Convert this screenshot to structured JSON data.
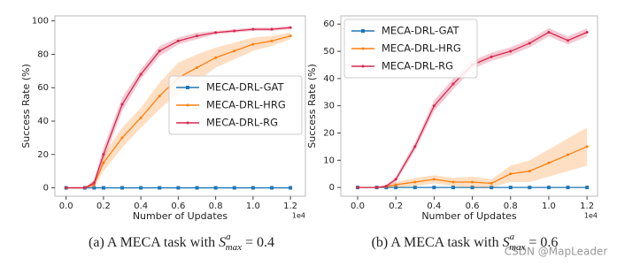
{
  "chart_data": [
    {
      "type": "line",
      "y_label": "Success Rate (%)",
      "x_label": "Number of Updates",
      "x_offset_label": "1e4",
      "x": [
        0,
        0.1,
        0.15,
        0.2,
        0.3,
        0.4,
        0.5,
        0.6,
        0.7,
        0.8,
        0.9,
        1.0,
        1.1,
        1.2
      ],
      "xlim": [
        -0.06,
        1.28
      ],
      "ylim": [
        -5,
        103
      ],
      "xticks": [
        {
          "value": 0,
          "label": "0.0"
        },
        {
          "value": 0.2,
          "label": "0.2"
        },
        {
          "value": 0.4,
          "label": "0.4"
        },
        {
          "value": 0.6,
          "label": "0.6"
        },
        {
          "value": 0.8,
          "label": "0.8"
        },
        {
          "value": 1.0,
          "label": "1.0"
        },
        {
          "value": 1.2,
          "label": "1.2"
        }
      ],
      "yticks": [
        0,
        20,
        40,
        60,
        80,
        100
      ],
      "legend": "lower right",
      "series": [
        {
          "name": "MECA-DRL-GAT",
          "color": "#1f77b4",
          "marker": "square",
          "values": [
            0,
            0,
            0,
            0,
            0,
            0,
            0,
            0,
            0,
            0,
            0,
            0,
            0,
            0
          ]
        },
        {
          "name": "MECA-DRL-HRG",
          "color": "#ff7f0e",
          "marker": "dot",
          "values": [
            0,
            0,
            2,
            15,
            30,
            42,
            55,
            66,
            72,
            78,
            82,
            86,
            88,
            91
          ],
          "lower": [
            0,
            0,
            0,
            10,
            24,
            36,
            47,
            57,
            64,
            72,
            77,
            82,
            85,
            89
          ],
          "upper": [
            0,
            0,
            4,
            20,
            36,
            48,
            63,
            75,
            80,
            84,
            87,
            90,
            91,
            93
          ]
        },
        {
          "name": "MECA-DRL-RG",
          "color": "#d62750",
          "marker": "dot",
          "values": [
            0,
            0,
            3,
            20,
            50,
            68,
            82,
            88,
            91,
            93,
            94,
            95,
            95,
            96
          ],
          "lower": [
            0,
            0,
            1,
            16,
            46,
            65,
            79,
            86,
            89,
            92,
            93,
            94,
            94,
            95
          ],
          "upper": [
            0,
            0,
            5,
            24,
            54,
            71,
            85,
            90,
            93,
            94,
            95,
            96,
            96,
            97
          ]
        }
      ],
      "caption": {
        "prefix": "(a) A MECA task with ",
        "symbol": "S",
        "sup": "a",
        "sub": "max",
        "suffix": " = 0.4"
      }
    },
    {
      "type": "line",
      "y_label": "Success Rate (%)",
      "x_label": "Number of Updates",
      "x_offset_label": "1e4",
      "x": [
        0,
        0.1,
        0.15,
        0.2,
        0.3,
        0.4,
        0.5,
        0.6,
        0.7,
        0.8,
        0.9,
        1.0,
        1.1,
        1.2
      ],
      "xlim": [
        -0.088,
        1.255
      ],
      "ylim": [
        -3.2,
        63
      ],
      "xticks": [
        {
          "value": 0,
          "label": "0.0"
        },
        {
          "value": 0.2,
          "label": "0.2"
        },
        {
          "value": 0.4,
          "label": "0.4"
        },
        {
          "value": 0.6,
          "label": "0.6"
        },
        {
          "value": 0.8,
          "label": "0.8"
        },
        {
          "value": 1.0,
          "label": "1.0"
        },
        {
          "value": 1.2,
          "label": "1.2"
        }
      ],
      "yticks": [
        0,
        10,
        20,
        30,
        40,
        50,
        60
      ],
      "legend": "upper left",
      "series": [
        {
          "name": "MECA-DRL-GAT",
          "color": "#1f77b4",
          "marker": "square",
          "values": [
            0,
            0,
            0,
            0,
            0,
            0,
            0,
            0,
            0,
            0,
            0,
            0,
            0,
            0
          ]
        },
        {
          "name": "MECA-DRL-HRG",
          "color": "#ff7f0e",
          "marker": "dot",
          "values": [
            0,
            0,
            0.3,
            1,
            2,
            3,
            2,
            2,
            1.5,
            5,
            6,
            9,
            12,
            15
          ],
          "lower": [
            0,
            0,
            0,
            0,
            0.5,
            1.5,
            0.5,
            0,
            0,
            2,
            2,
            4,
            6,
            8
          ],
          "upper": [
            0,
            0,
            0.6,
            2,
            3.5,
            4.5,
            3.5,
            4,
            3,
            8,
            10,
            14,
            18,
            22
          ]
        },
        {
          "name": "MECA-DRL-RG",
          "color": "#d62750",
          "marker": "dot",
          "values": [
            0,
            0,
            0.5,
            3,
            15,
            30,
            38,
            45,
            48,
            50,
            53,
            57,
            54,
            57
          ],
          "lower": [
            0,
            0,
            0,
            2,
            13.5,
            28,
            36,
            43.5,
            46.5,
            48.5,
            51.5,
            55.5,
            52.5,
            55.5
          ],
          "upper": [
            0,
            0,
            1,
            4,
            16.5,
            32,
            40,
            46.5,
            49.5,
            51.5,
            54.5,
            58.5,
            55.5,
            58.5
          ]
        }
      ],
      "caption": {
        "prefix": "(b) A MECA task with ",
        "symbol": "S",
        "sup": "a",
        "sub": "max",
        "suffix": " = 0.6"
      }
    }
  ],
  "watermark": "CSDN @MapLeader"
}
